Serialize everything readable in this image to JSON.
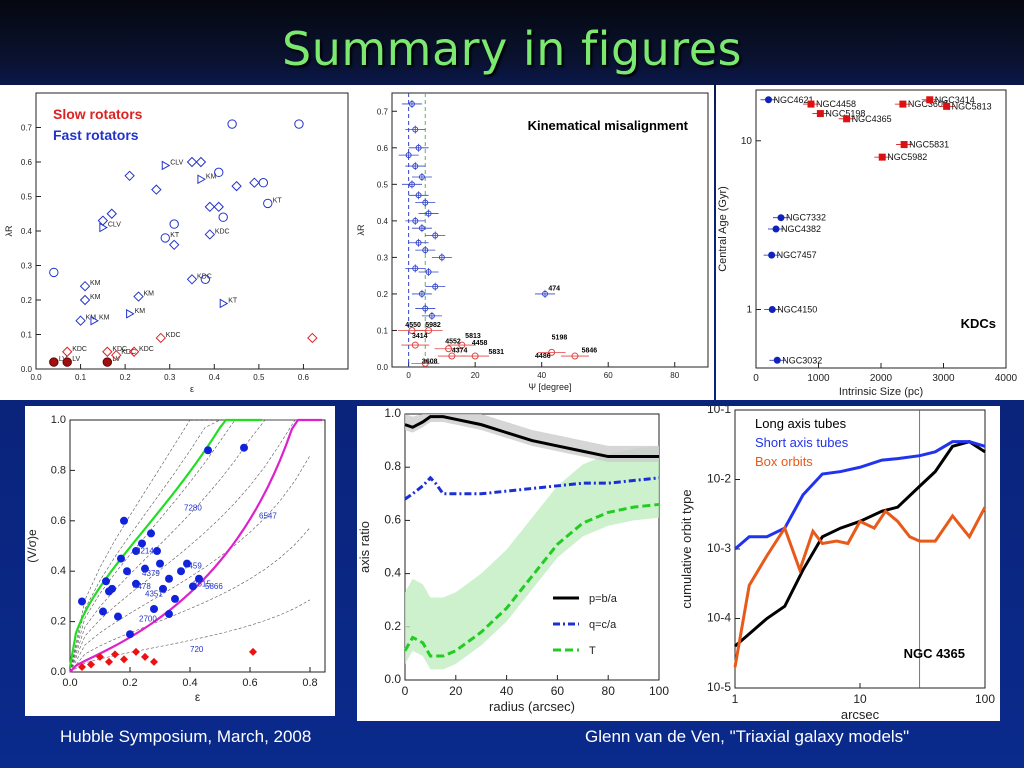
{
  "slide": {
    "title": "Summary in figures",
    "footer_left": "Hubble Symposium, March, 2008",
    "footer_right": "Glenn van de Ven, \"Triaxial galaxy models\""
  },
  "chart_data": [
    {
      "type": "scatter",
      "legend": [
        "Slow rotators",
        "Fast rotators"
      ],
      "xlabel": "ε",
      "ylabel": "λR",
      "xlim": [
        0,
        0.7
      ],
      "ylim": [
        0,
        0.8
      ],
      "xticks": [
        "0.0",
        "0.1",
        "0.2",
        "0.3",
        "0.4",
        "0.5",
        "0.6"
      ],
      "yticks": [
        "0.0",
        "0.1",
        "0.2",
        "0.3",
        "0.4",
        "0.5",
        "0.6",
        "0.7"
      ],
      "colors": {
        "slow": "#dd2222",
        "fast": "#2233cc"
      },
      "fast": [
        {
          "x": 0.04,
          "y": 0.28,
          "m": "o"
        },
        {
          "x": 0.11,
          "y": 0.24,
          "m": "d",
          "l": "KM"
        },
        {
          "x": 0.11,
          "y": 0.2,
          "m": "d",
          "l": "KM"
        },
        {
          "x": 0.1,
          "y": 0.14,
          "m": "d",
          "l": "KM"
        },
        {
          "x": 0.13,
          "y": 0.14,
          "m": "t",
          "l": "KM"
        },
        {
          "x": 0.23,
          "y": 0.21,
          "m": "d",
          "l": "KM"
        },
        {
          "x": 0.21,
          "y": 0.16,
          "m": "t",
          "l": "KM"
        },
        {
          "x": 0.15,
          "y": 0.43,
          "m": "d"
        },
        {
          "x": 0.17,
          "y": 0.45,
          "m": "d"
        },
        {
          "x": 0.15,
          "y": 0.41,
          "m": "t",
          "l": "CLV"
        },
        {
          "x": 0.21,
          "y": 0.56,
          "m": "d"
        },
        {
          "x": 0.27,
          "y": 0.52,
          "m": "d"
        },
        {
          "x": 0.29,
          "y": 0.59,
          "m": "t",
          "l": "CLV"
        },
        {
          "x": 0.29,
          "y": 0.38,
          "m": "o",
          "l": "KT"
        },
        {
          "x": 0.31,
          "y": 0.36,
          "m": "d"
        },
        {
          "x": 0.31,
          "y": 0.42,
          "m": "o"
        },
        {
          "x": 0.35,
          "y": 0.6,
          "m": "d"
        },
        {
          "x": 0.37,
          "y": 0.6,
          "m": "d"
        },
        {
          "x": 0.37,
          "y": 0.55,
          "m": "t",
          "l": "KM"
        },
        {
          "x": 0.41,
          "y": 0.57,
          "m": "o"
        },
        {
          "x": 0.39,
          "y": 0.39,
          "m": "d",
          "l": "KDC"
        },
        {
          "x": 0.35,
          "y": 0.26,
          "m": "d",
          "l": "KDC"
        },
        {
          "x": 0.38,
          "y": 0.26,
          "m": "o"
        },
        {
          "x": 0.39,
          "y": 0.47,
          "m": "d"
        },
        {
          "x": 0.41,
          "y": 0.47,
          "m": "d"
        },
        {
          "x": 0.42,
          "y": 0.44,
          "m": "o"
        },
        {
          "x": 0.42,
          "y": 0.19,
          "m": "t",
          "l": "KT"
        },
        {
          "x": 0.44,
          "y": 0.71,
          "m": "o"
        },
        {
          "x": 0.45,
          "y": 0.53,
          "m": "d"
        },
        {
          "x": 0.49,
          "y": 0.54,
          "m": "d"
        },
        {
          "x": 0.52,
          "y": 0.48,
          "m": "o",
          "l": "KT"
        },
        {
          "x": 0.51,
          "y": 0.54,
          "m": "o"
        },
        {
          "x": 0.59,
          "y": 0.71,
          "m": "o"
        }
      ],
      "slow": [
        {
          "x": 0.04,
          "y": 0.02,
          "m": "f",
          "l": "LV"
        },
        {
          "x": 0.07,
          "y": 0.02,
          "m": "f",
          "l": "LV"
        },
        {
          "x": 0.16,
          "y": 0.02,
          "m": "f",
          "l": "LV"
        },
        {
          "x": 0.07,
          "y": 0.05,
          "m": "d",
          "l": "KDC"
        },
        {
          "x": 0.16,
          "y": 0.05,
          "m": "d",
          "l": "KDC"
        },
        {
          "x": 0.18,
          "y": 0.04,
          "m": "d",
          "l": "KDC"
        },
        {
          "x": 0.22,
          "y": 0.05,
          "m": "d",
          "l": "KDC"
        },
        {
          "x": 0.28,
          "y": 0.09,
          "m": "d",
          "l": "KDC"
        },
        {
          "x": 0.62,
          "y": 0.09,
          "m": "d"
        }
      ]
    },
    {
      "type": "scatter",
      "title": "Kinematical misalignment",
      "xlabel": "Ψ [degree]",
      "ylabel": "λR",
      "xlim": [
        -5,
        90
      ],
      "ylim": [
        0,
        0.75
      ],
      "xticks": [
        "0",
        "20",
        "40",
        "60",
        "80"
      ],
      "yticks": [
        "0.0",
        "0.1",
        "0.2",
        "0.3",
        "0.4",
        "0.5",
        "0.6",
        "0.7"
      ],
      "points": [
        {
          "x": 1,
          "y": 0.72
        },
        {
          "x": 2,
          "y": 0.65
        },
        {
          "x": 3,
          "y": 0.6
        },
        {
          "x": 0,
          "y": 0.58
        },
        {
          "x": 2,
          "y": 0.55
        },
        {
          "x": 4,
          "y": 0.52
        },
        {
          "x": 1,
          "y": 0.5
        },
        {
          "x": 3,
          "y": 0.47
        },
        {
          "x": 5,
          "y": 0.45
        },
        {
          "x": 6,
          "y": 0.42
        },
        {
          "x": 2,
          "y": 0.4
        },
        {
          "x": 4,
          "y": 0.38
        },
        {
          "x": 8,
          "y": 0.36
        },
        {
          "x": 3,
          "y": 0.34
        },
        {
          "x": 5,
          "y": 0.32
        },
        {
          "x": 10,
          "y": 0.3
        },
        {
          "x": 2,
          "y": 0.27
        },
        {
          "x": 6,
          "y": 0.26
        },
        {
          "x": 8,
          "y": 0.22
        },
        {
          "x": 4,
          "y": 0.2
        },
        {
          "x": 5,
          "y": 0.16
        },
        {
          "x": 7,
          "y": 0.14
        },
        {
          "x": 41,
          "y": 0.2
        }
      ],
      "red_points": [
        {
          "x": 1,
          "y": 0.1
        },
        {
          "x": 6,
          "y": 0.1
        },
        {
          "x": 2,
          "y": 0.06
        },
        {
          "x": 12,
          "y": 0.05
        },
        {
          "x": 16,
          "y": 0.06
        },
        {
          "x": 13,
          "y": 0.03
        },
        {
          "x": 20,
          "y": 0.03
        },
        {
          "x": 43,
          "y": 0.04
        },
        {
          "x": 50,
          "y": 0.03
        },
        {
          "x": 5,
          "y": 0.01
        }
      ],
      "labels": [
        {
          "t": "474",
          "x": 42,
          "y": 0.21
        },
        {
          "t": "4550",
          "x": -1,
          "y": 0.11
        },
        {
          "t": "5982",
          "x": 5,
          "y": 0.11
        },
        {
          "t": "3414",
          "x": 1,
          "y": 0.08
        },
        {
          "t": "5813",
          "x": 17,
          "y": 0.08
        },
        {
          "t": "4552",
          "x": 11,
          "y": 0.065
        },
        {
          "t": "4458",
          "x": 19,
          "y": 0.06
        },
        {
          "t": "4374",
          "x": 13,
          "y": 0.04
        },
        {
          "t": "5198",
          "x": 43,
          "y": 0.075
        },
        {
          "t": "5831",
          "x": 24,
          "y": 0.035
        },
        {
          "t": "5846",
          "x": 52,
          "y": 0.04
        },
        {
          "t": "4486",
          "x": 38,
          "y": 0.025
        },
        {
          "t": "3608",
          "x": 4,
          "y": 0.01
        }
      ]
    },
    {
      "type": "scatter",
      "title": "KDCs",
      "xlabel": "Intrinsic Size (pc)",
      "ylabel": "Central Age (Gyr)",
      "xlim": [
        0,
        4000
      ],
      "ylog": true,
      "ylim": [
        0.45,
        20
      ],
      "xticks": [
        "0",
        "1000",
        "2000",
        "3000",
        "4000"
      ],
      "yticks": [
        "1",
        "10"
      ],
      "points": [
        {
          "x": 200,
          "y": 17.5,
          "c": "blue",
          "l": "NGC4621"
        },
        {
          "x": 880,
          "y": 16.5,
          "c": "red",
          "l": "NGC4458"
        },
        {
          "x": 1030,
          "y": 14.5,
          "c": "red",
          "l": "NGC5198"
        },
        {
          "x": 1450,
          "y": 13.5,
          "c": "red",
          "l": "NGC4365"
        },
        {
          "x": 2350,
          "y": 16.5,
          "c": "red",
          "l": "NGC3608"
        },
        {
          "x": 2780,
          "y": 17.5,
          "c": "red",
          "l": "NGC3414"
        },
        {
          "x": 3050,
          "y": 16.0,
          "c": "red",
          "l": "NGC5813"
        },
        {
          "x": 2370,
          "y": 9.5,
          "c": "red",
          "l": "NGC5831"
        },
        {
          "x": 2020,
          "y": 8.0,
          "c": "red",
          "l": "NGC5982"
        },
        {
          "x": 400,
          "y": 3.5,
          "c": "blue",
          "l": "NGC7332"
        },
        {
          "x": 320,
          "y": 3.0,
          "c": "blue",
          "l": "NGC4382"
        },
        {
          "x": 250,
          "y": 2.1,
          "c": "blue",
          "l": "NGC7457"
        },
        {
          "x": 260,
          "y": 1.0,
          "c": "blue",
          "l": "NGC4150"
        },
        {
          "x": 340,
          "y": 0.5,
          "c": "blue",
          "l": "NGC3032"
        }
      ]
    },
    {
      "type": "scatter",
      "xlabel": "ε",
      "ylabel": "(V/σ)e",
      "xlim": [
        0,
        0.85
      ],
      "ylim": [
        0,
        1.0
      ],
      "xticks": [
        "0.0",
        "0.2",
        "0.4",
        "0.6",
        "0.8"
      ],
      "yticks": [
        "0.0",
        "0.2",
        "0.4",
        "0.6",
        "0.8",
        "1.0"
      ],
      "blue_points": [
        {
          "x": 0.04,
          "y": 0.28
        },
        {
          "x": 0.11,
          "y": 0.24
        },
        {
          "x": 0.17,
          "y": 0.45
        },
        {
          "x": 0.19,
          "y": 0.4
        },
        {
          "x": 0.22,
          "y": 0.48
        },
        {
          "x": 0.24,
          "y": 0.51
        },
        {
          "x": 0.25,
          "y": 0.41
        },
        {
          "x": 0.27,
          "y": 0.55
        },
        {
          "x": 0.29,
          "y": 0.48
        },
        {
          "x": 0.31,
          "y": 0.33
        },
        {
          "x": 0.33,
          "y": 0.37
        },
        {
          "x": 0.35,
          "y": 0.29
        },
        {
          "x": 0.37,
          "y": 0.4
        },
        {
          "x": 0.39,
          "y": 0.43
        },
        {
          "x": 0.41,
          "y": 0.34
        },
        {
          "x": 0.43,
          "y": 0.37
        },
        {
          "x": 0.28,
          "y": 0.25
        },
        {
          "x": 0.22,
          "y": 0.35
        },
        {
          "x": 0.46,
          "y": 0.88
        },
        {
          "x": 0.58,
          "y": 0.89
        },
        {
          "x": 0.13,
          "y": 0.32
        },
        {
          "x": 0.16,
          "y": 0.22
        },
        {
          "x": 0.2,
          "y": 0.15
        },
        {
          "x": 0.33,
          "y": 0.23
        },
        {
          "x": 0.18,
          "y": 0.6
        },
        {
          "x": 0.14,
          "y": 0.33
        },
        {
          "x": 0.3,
          "y": 0.43
        },
        {
          "x": 0.12,
          "y": 0.36
        }
      ],
      "red_points": [
        {
          "x": 0.04,
          "y": 0.02
        },
        {
          "x": 0.07,
          "y": 0.03
        },
        {
          "x": 0.1,
          "y": 0.06
        },
        {
          "x": 0.13,
          "y": 0.04
        },
        {
          "x": 0.15,
          "y": 0.07
        },
        {
          "x": 0.18,
          "y": 0.05
        },
        {
          "x": 0.22,
          "y": 0.08
        },
        {
          "x": 0.25,
          "y": 0.06
        },
        {
          "x": 0.28,
          "y": 0.04
        },
        {
          "x": 0.61,
          "y": 0.08
        }
      ],
      "labels": [
        {
          "t": "7280",
          "x": 0.38,
          "y": 0.64
        },
        {
          "t": "6547",
          "x": 0.63,
          "y": 0.61
        },
        {
          "t": "2214",
          "x": 0.22,
          "y": 0.47
        },
        {
          "t": "4379",
          "x": 0.24,
          "y": 0.38
        },
        {
          "t": "7459",
          "x": 0.38,
          "y": 0.41
        },
        {
          "t": "4478",
          "x": 0.21,
          "y": 0.33
        },
        {
          "t": "4351",
          "x": 0.25,
          "y": 0.3
        },
        {
          "t": "2515",
          "x": 0.41,
          "y": 0.34
        },
        {
          "t": "5866",
          "x": 0.45,
          "y": 0.33
        },
        {
          "t": "2700",
          "x": 0.23,
          "y": 0.2
        },
        {
          "t": "720",
          "x": 0.4,
          "y": 0.08
        }
      ]
    },
    {
      "type": "line",
      "xlabel": "radius (arcsec)",
      "ylabel": "axis ratio",
      "xlim": [
        0,
        100
      ],
      "ylim": [
        0,
        1.0
      ],
      "xticks": [
        "0",
        "20",
        "40",
        "60",
        "80",
        "100"
      ],
      "yticks": [
        "0.0",
        "0.2",
        "0.4",
        "0.6",
        "0.8",
        "1.0"
      ],
      "series": [
        {
          "name": "p=b/a",
          "color": "#000000",
          "x": [
            0,
            3,
            7,
            10,
            15,
            20,
            30,
            40,
            50,
            60,
            70,
            80,
            90,
            100
          ],
          "y": [
            0.96,
            0.95,
            0.97,
            0.99,
            0.99,
            0.98,
            0.96,
            0.93,
            0.9,
            0.88,
            0.86,
            0.84,
            0.84,
            0.84
          ]
        },
        {
          "name": "q=c/a",
          "color": "#1b2fd6",
          "x": [
            0,
            3,
            7,
            10,
            12,
            15,
            20,
            30,
            40,
            50,
            60,
            70,
            80,
            90,
            100
          ],
          "y": [
            0.68,
            0.7,
            0.73,
            0.76,
            0.74,
            0.7,
            0.7,
            0.7,
            0.71,
            0.72,
            0.73,
            0.74,
            0.74,
            0.75,
            0.76
          ]
        },
        {
          "name": "T",
          "color": "#22cc22",
          "x": [
            0,
            3,
            7,
            10,
            15,
            20,
            30,
            40,
            50,
            60,
            70,
            80,
            90,
            100
          ],
          "y": [
            0.11,
            0.16,
            0.14,
            0.09,
            0.09,
            0.11,
            0.18,
            0.27,
            0.39,
            0.51,
            0.59,
            0.63,
            0.65,
            0.66
          ]
        }
      ]
    },
    {
      "type": "line",
      "title": "NGC 4365",
      "xlabel": "arcsec",
      "ylabel": "cumulative orbit type",
      "xlog": true,
      "ylog": true,
      "xlim": [
        1,
        100
      ],
      "ylim": [
        1e-05,
        0.1
      ],
      "xticks": [
        "1",
        "10",
        "100"
      ],
      "yticks": [
        "10-5",
        "10-4",
        "10-3",
        "10-2",
        "10-1"
      ],
      "series": [
        {
          "name": "Long axis tubes",
          "color": "#000000",
          "x": [
            1,
            1.3,
            1.8,
            2.5,
            3.5,
            5,
            7,
            10,
            15,
            20,
            30,
            40,
            55,
            75,
            100
          ],
          "y": [
            4e-05,
            6e-05,
            0.0001,
            0.00015,
            0.0005,
            0.0015,
            0.002,
            0.0025,
            0.0035,
            0.004,
            0.008,
            0.013,
            0.03,
            0.035,
            0.025
          ]
        },
        {
          "name": "Short axis tubes",
          "color": "#2233ee",
          "x": [
            1,
            1.3,
            1.8,
            2.5,
            3.5,
            5,
            7,
            10,
            15,
            20,
            30,
            40,
            55,
            75,
            100
          ],
          "y": [
            0.001,
            0.0015,
            0.0015,
            0.002,
            0.006,
            0.012,
            0.013,
            0.015,
            0.019,
            0.02,
            0.022,
            0.025,
            0.035,
            0.035,
            0.03
          ]
        },
        {
          "name": "Box orbits",
          "color": "#e85a1a",
          "x": [
            1,
            1.3,
            1.8,
            2.5,
            3.3,
            4.2,
            5,
            6.5,
            8,
            10,
            13,
            16,
            20,
            25,
            30,
            40,
            55,
            75,
            100
          ],
          "y": [
            2e-05,
            0.0003,
            0.0008,
            0.002,
            0.0005,
            0.0018,
            0.0012,
            0.0013,
            0.0012,
            0.0025,
            0.002,
            0.0035,
            0.0025,
            0.0015,
            0.0013,
            0.0013,
            0.003,
            0.0015,
            0.004
          ]
        }
      ]
    }
  ]
}
